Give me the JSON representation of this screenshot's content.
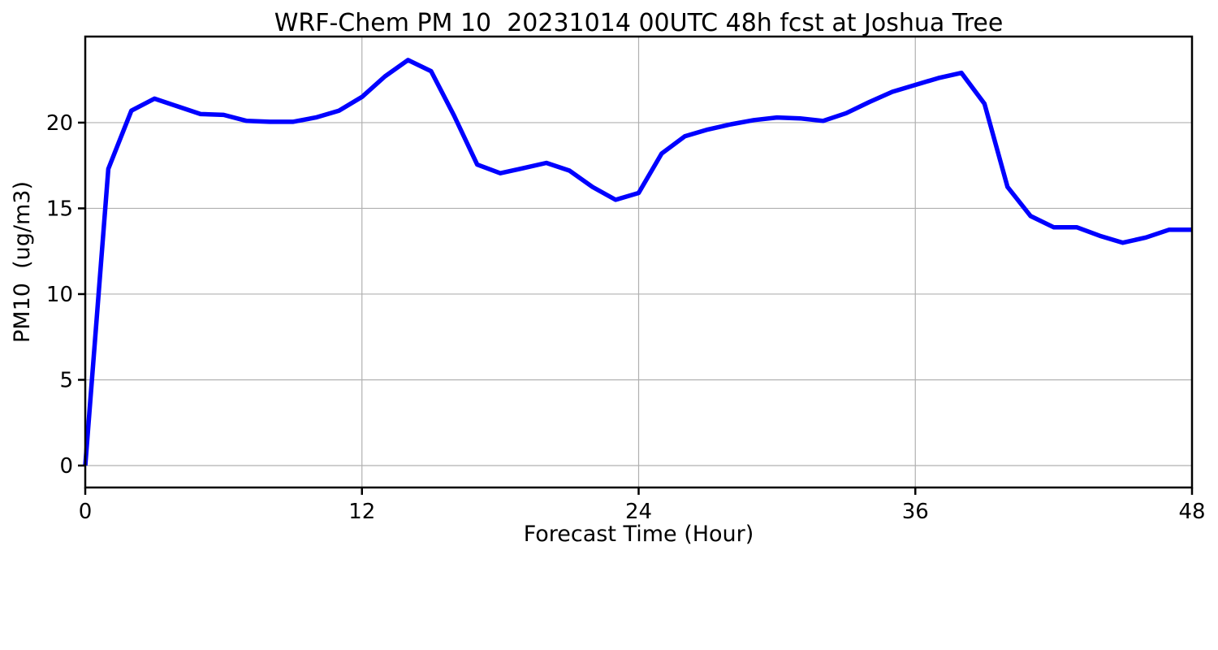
{
  "page": {
    "background": "#ffffff"
  },
  "chart_data": {
    "type": "line",
    "title": "WRF-Chem PM 10  20231014 00UTC 48h fcst at Joshua Tree",
    "xlabel": "Forecast Time (Hour)",
    "ylabel": "PM10  (ug/m3)",
    "x": [
      0,
      1,
      2,
      3,
      4,
      5,
      6,
      7,
      8,
      9,
      10,
      11,
      12,
      13,
      14,
      15,
      16,
      17,
      18,
      19,
      20,
      21,
      22,
      23,
      24,
      25,
      26,
      27,
      28,
      29,
      30,
      31,
      32,
      33,
      34,
      35,
      36,
      37,
      38,
      39,
      40,
      41,
      42,
      43,
      44,
      45,
      46,
      47,
      48
    ],
    "series": [
      {
        "name": "PM10 48h forecast at Joshua Tree",
        "color": "#0000ff",
        "line_width": 5.5,
        "values": [
          0.0,
          17.3,
          20.7,
          21.4,
          20.95,
          20.5,
          20.45,
          20.1,
          20.05,
          20.05,
          20.3,
          20.7,
          21.5,
          22.7,
          23.65,
          23.0,
          20.4,
          17.55,
          17.05,
          17.35,
          17.65,
          17.2,
          16.25,
          15.5,
          15.9,
          18.2,
          19.2,
          19.6,
          19.9,
          20.15,
          20.3,
          20.25,
          20.1,
          20.55,
          21.2,
          21.8,
          22.2,
          22.6,
          22.9,
          21.1,
          16.25,
          14.55,
          13.9,
          13.9,
          13.4,
          13.0,
          13.3,
          13.75,
          13.75
        ]
      }
    ],
    "xlim": [
      0,
      48
    ],
    "ylim": [
      -1.28,
      25.02
    ],
    "xticks": [
      0,
      12,
      24,
      36,
      48
    ],
    "yticks": [
      0,
      5,
      10,
      15,
      20
    ],
    "grid": true,
    "legend": "none",
    "colors": {
      "grid": "#b0b0b0",
      "axis": "#000000",
      "text": "#000000",
      "background": "#ffffff"
    }
  }
}
